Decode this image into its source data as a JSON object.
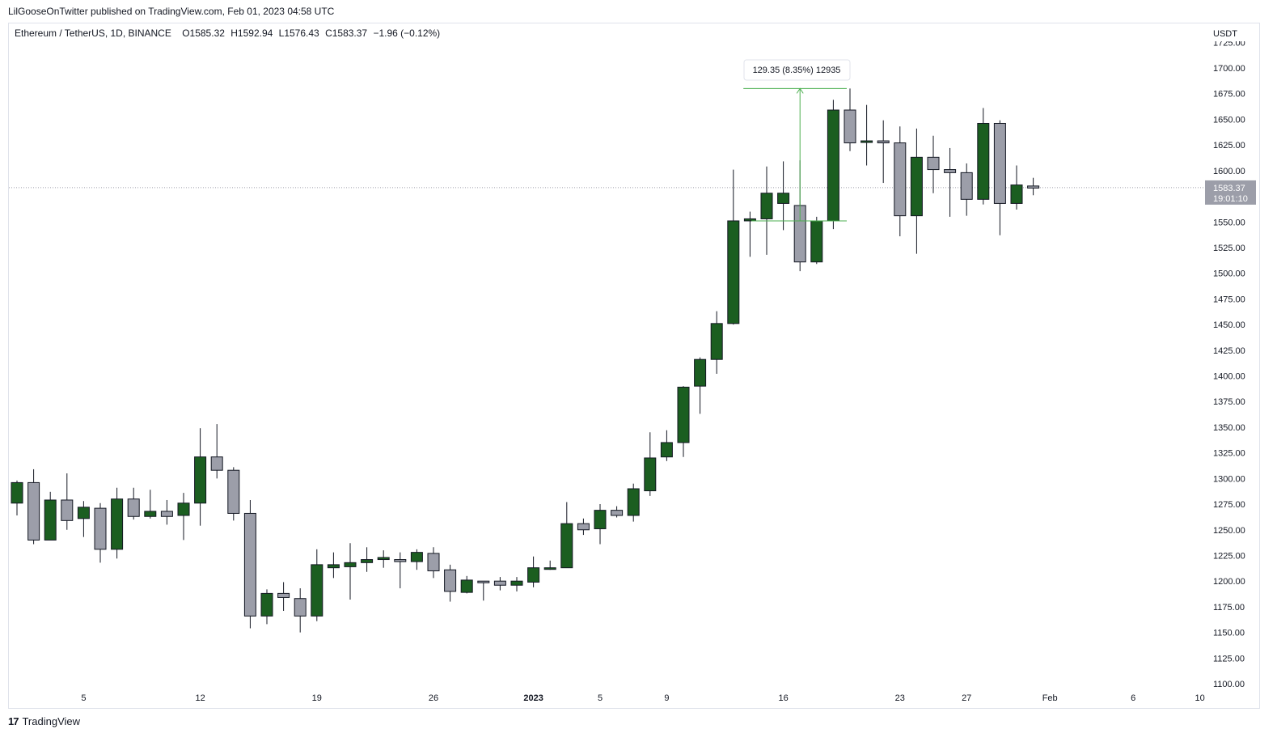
{
  "publish_line": "LilGooseOnTwitter published on TradingView.com, Feb 01, 2023 04:58 UTC",
  "legend": {
    "symbol": "Ethereum / TetherUS, 1D, BINANCE",
    "open": "O1585.32",
    "high": "H1592.94",
    "low": "L1576.43",
    "close": "C1583.37",
    "change": "−1.96 (−0.12%)"
  },
  "footer": {
    "logo_glyph": "17",
    "brand": "TradingView"
  },
  "colors": {
    "up": "#1b5e20",
    "down": "#9c9ea9",
    "measure": "#4caf50",
    "price_tag": "#9c9ea9",
    "grid": "#e0e3eb"
  },
  "chart_data": {
    "type": "candlestick",
    "currency_label": "USDT",
    "ylim": [
      1100,
      1725
    ],
    "y_ticks": [
      1100,
      1125,
      1150,
      1175,
      1200,
      1225,
      1250,
      1275,
      1300,
      1325,
      1350,
      1375,
      1400,
      1425,
      1450,
      1475,
      1500,
      1525,
      1550,
      1575,
      1600,
      1625,
      1650,
      1675,
      1700,
      1725
    ],
    "x_ticks": [
      {
        "day": 5,
        "label": "5"
      },
      {
        "day": 12,
        "label": "12"
      },
      {
        "day": 19,
        "label": "19"
      },
      {
        "day": 26,
        "label": "26"
      },
      {
        "day": 32,
        "label": "2023"
      },
      {
        "day": 36,
        "label": "5"
      },
      {
        "day": 40,
        "label": "9"
      },
      {
        "day": 47,
        "label": "16"
      },
      {
        "day": 54,
        "label": "23"
      },
      {
        "day": 58,
        "label": "27"
      },
      {
        "day": 63,
        "label": "Feb"
      },
      {
        "day": 68,
        "label": "6"
      },
      {
        "day": 72,
        "label": "10"
      }
    ],
    "candles": [
      {
        "day": 1,
        "o": 1276,
        "h": 1298,
        "l": 1264,
        "c": 1296
      },
      {
        "day": 2,
        "o": 1296,
        "h": 1309,
        "l": 1236,
        "c": 1240
      },
      {
        "day": 3,
        "o": 1240,
        "h": 1287,
        "l": 1240,
        "c": 1279
      },
      {
        "day": 4,
        "o": 1279,
        "h": 1305,
        "l": 1250,
        "c": 1259
      },
      {
        "day": 5,
        "o": 1261,
        "h": 1278,
        "l": 1243,
        "c": 1272
      },
      {
        "day": 6,
        "o": 1271,
        "h": 1276,
        "l": 1218,
        "c": 1231
      },
      {
        "day": 7,
        "o": 1231,
        "h": 1291,
        "l": 1222,
        "c": 1280
      },
      {
        "day": 8,
        "o": 1280,
        "h": 1291,
        "l": 1260,
        "c": 1263
      },
      {
        "day": 9,
        "o": 1263,
        "h": 1289,
        "l": 1261,
        "c": 1268
      },
      {
        "day": 10,
        "o": 1268,
        "h": 1279,
        "l": 1255,
        "c": 1263
      },
      {
        "day": 11,
        "o": 1264,
        "h": 1286,
        "l": 1240,
        "c": 1276
      },
      {
        "day": 12,
        "o": 1276,
        "h": 1349,
        "l": 1254,
        "c": 1321
      },
      {
        "day": 13,
        "o": 1321,
        "h": 1353,
        "l": 1300,
        "c": 1308
      },
      {
        "day": 14,
        "o": 1308,
        "h": 1311,
        "l": 1259,
        "c": 1266
      },
      {
        "day": 15,
        "o": 1266,
        "h": 1279,
        "l": 1154,
        "c": 1166
      },
      {
        "day": 16,
        "o": 1166,
        "h": 1192,
        "l": 1158,
        "c": 1188
      },
      {
        "day": 17,
        "o": 1188,
        "h": 1199,
        "l": 1171,
        "c": 1184
      },
      {
        "day": 18,
        "o": 1183,
        "h": 1193,
        "l": 1150,
        "c": 1166
      },
      {
        "day": 19,
        "o": 1166,
        "h": 1231,
        "l": 1161,
        "c": 1216
      },
      {
        "day": 20,
        "o": 1213,
        "h": 1228,
        "l": 1203,
        "c": 1216
      },
      {
        "day": 21,
        "o": 1214,
        "h": 1237,
        "l": 1182,
        "c": 1218
      },
      {
        "day": 22,
        "o": 1218,
        "h": 1233,
        "l": 1209,
        "c": 1221
      },
      {
        "day": 23,
        "o": 1221,
        "h": 1230,
        "l": 1213,
        "c": 1223
      },
      {
        "day": 24,
        "o": 1221,
        "h": 1228,
        "l": 1193,
        "c": 1219
      },
      {
        "day": 25,
        "o": 1219,
        "h": 1231,
        "l": 1211,
        "c": 1228
      },
      {
        "day": 26,
        "o": 1227,
        "h": 1233,
        "l": 1203,
        "c": 1210
      },
      {
        "day": 27,
        "o": 1211,
        "h": 1216,
        "l": 1180,
        "c": 1190
      },
      {
        "day": 28,
        "o": 1189,
        "h": 1205,
        "l": 1188,
        "c": 1201
      },
      {
        "day": 29,
        "o": 1200,
        "h": 1200,
        "l": 1181,
        "c": 1199
      },
      {
        "day": 30,
        "o": 1200,
        "h": 1204,
        "l": 1191,
        "c": 1196
      },
      {
        "day": 31,
        "o": 1196,
        "h": 1204,
        "l": 1190,
        "c": 1200
      },
      {
        "day": 32,
        "o": 1199,
        "h": 1224,
        "l": 1194,
        "c": 1213
      },
      {
        "day": 33,
        "o": 1213,
        "h": 1220,
        "l": 1211,
        "c": 1213
      },
      {
        "day": 34,
        "o": 1213,
        "h": 1277,
        "l": 1213,
        "c": 1256
      },
      {
        "day": 35,
        "o": 1256,
        "h": 1261,
        "l": 1245,
        "c": 1250
      },
      {
        "day": 36,
        "o": 1251,
        "h": 1275,
        "l": 1236,
        "c": 1269
      },
      {
        "day": 37,
        "o": 1269,
        "h": 1273,
        "l": 1262,
        "c": 1264
      },
      {
        "day": 38,
        "o": 1264,
        "h": 1295,
        "l": 1258,
        "c": 1290
      },
      {
        "day": 39,
        "o": 1288,
        "h": 1345,
        "l": 1283,
        "c": 1320
      },
      {
        "day": 40,
        "o": 1321,
        "h": 1347,
        "l": 1317,
        "c": 1335
      },
      {
        "day": 41,
        "o": 1335,
        "h": 1390,
        "l": 1321,
        "c": 1389
      },
      {
        "day": 42,
        "o": 1390,
        "h": 1418,
        "l": 1363,
        "c": 1416
      },
      {
        "day": 43,
        "o": 1416,
        "h": 1463,
        "l": 1402,
        "c": 1451
      },
      {
        "day": 44,
        "o": 1451,
        "h": 1601,
        "l": 1450,
        "c": 1551
      },
      {
        "day": 45,
        "o": 1551,
        "h": 1560,
        "l": 1516,
        "c": 1553
      },
      {
        "day": 46,
        "o": 1553,
        "h": 1604,
        "l": 1518,
        "c": 1578
      },
      {
        "day": 47,
        "o": 1568,
        "h": 1609,
        "l": 1542,
        "c": 1578
      },
      {
        "day": 48,
        "o": 1566,
        "h": 1610,
        "l": 1502,
        "c": 1511
      },
      {
        "day": 49,
        "o": 1511,
        "h": 1555,
        "l": 1509,
        "c": 1551
      },
      {
        "day": 50,
        "o": 1551,
        "h": 1669,
        "l": 1543,
        "c": 1659
      },
      {
        "day": 51,
        "o": 1659,
        "h": 1680,
        "l": 1619,
        "c": 1627
      },
      {
        "day": 52,
        "o": 1628,
        "h": 1664,
        "l": 1605,
        "c": 1629
      },
      {
        "day": 53,
        "o": 1629,
        "h": 1649,
        "l": 1588,
        "c": 1627
      },
      {
        "day": 54,
        "o": 1627,
        "h": 1643,
        "l": 1536,
        "c": 1556
      },
      {
        "day": 55,
        "o": 1556,
        "h": 1641,
        "l": 1519,
        "c": 1613
      },
      {
        "day": 56,
        "o": 1613,
        "h": 1634,
        "l": 1578,
        "c": 1601
      },
      {
        "day": 57,
        "o": 1601,
        "h": 1622,
        "l": 1555,
        "c": 1598
      },
      {
        "day": 58,
        "o": 1598,
        "h": 1607,
        "l": 1556,
        "c": 1572
      },
      {
        "day": 59,
        "o": 1572,
        "h": 1661,
        "l": 1567,
        "c": 1646
      },
      {
        "day": 60,
        "o": 1646,
        "h": 1649,
        "l": 1537,
        "c": 1568
      },
      {
        "day": 61,
        "o": 1568,
        "h": 1605,
        "l": 1562,
        "c": 1586
      },
      {
        "day": 62,
        "o": 1585,
        "h": 1593,
        "l": 1576,
        "c": 1583
      }
    ],
    "last_price": {
      "value": 1583.37,
      "label": "1583.37",
      "countdown": "19:01:10"
    },
    "measure": {
      "from_day": 48,
      "to_day": 51,
      "from_price": 1551,
      "to_price": 1680,
      "label": "129.35 (8.35%) 12935"
    }
  }
}
